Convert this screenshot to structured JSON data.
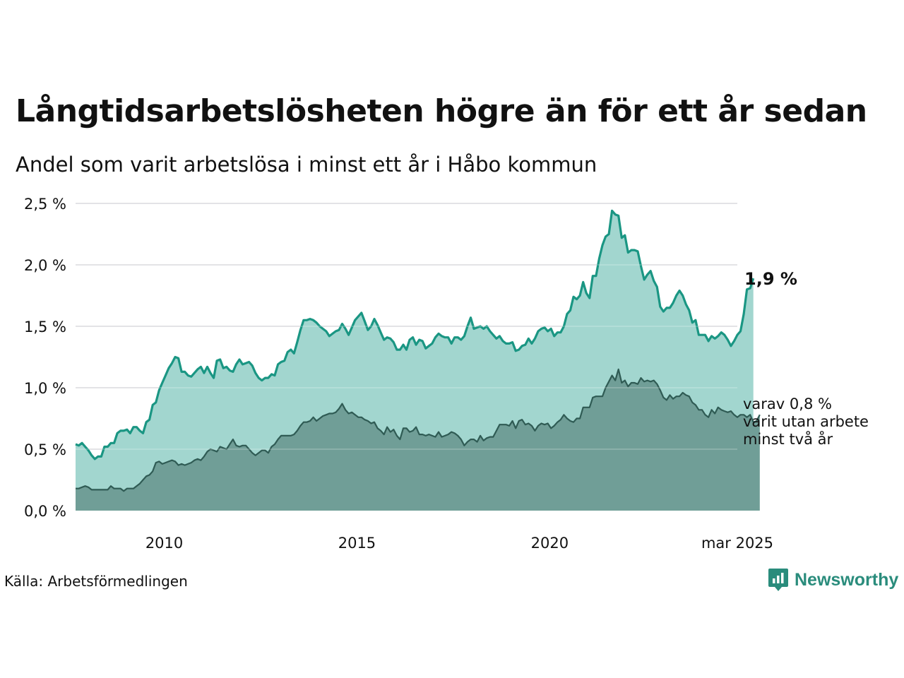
{
  "title": "Långtidsarbetslösheten högre än för ett år sedan",
  "subtitle": "Andel som varit arbetslösa i minst ett år i Håbo kommun",
  "source": "Källa: Arbetsförmedlingen",
  "brand": {
    "name": "Newsworthy",
    "icon": "newsworthy-logo-icon",
    "color": "#2a8c7c"
  },
  "colors": {
    "upper_line": "#1a9683",
    "upper_fill": "#a2d6cf",
    "lower_line": "#2f5b54",
    "lower_fill": "#709e97",
    "grid": "#dddde0"
  },
  "chart_data": {
    "type": "area",
    "ylim": [
      0,
      2.5
    ],
    "yticks": [
      "0,0 %",
      "0,5 %",
      "1,0 %",
      "1,5 %",
      "2,0 %",
      "2,5 %"
    ],
    "xticks": [
      "2010",
      "2015",
      "2020",
      "mar 2025"
    ],
    "xrange": [
      "2008-01",
      "2025-03"
    ],
    "grid": true,
    "series": [
      {
        "values_from": "2008-01",
        "frequency": "monthly",
        "end_label": "1,9 %",
        "values": [
          0.54,
          0.53,
          0.55,
          0.52,
          0.49,
          0.45,
          0.42,
          0.44,
          0.44,
          0.52,
          0.52,
          0.55,
          0.55,
          0.63,
          0.65,
          0.65,
          0.66,
          0.63,
          0.68,
          0.68,
          0.65,
          0.63,
          0.72,
          0.74,
          0.86,
          0.88,
          0.98,
          1.04,
          1.1,
          1.16,
          1.2,
          1.25,
          1.24,
          1.13,
          1.13,
          1.1,
          1.09,
          1.12,
          1.15,
          1.17,
          1.12,
          1.17,
          1.12,
          1.08,
          1.22,
          1.23,
          1.16,
          1.17,
          1.14,
          1.13,
          1.19,
          1.23,
          1.19,
          1.2,
          1.21,
          1.18,
          1.12,
          1.08,
          1.06,
          1.08,
          1.08,
          1.11,
          1.1,
          1.19,
          1.21,
          1.22,
          1.29,
          1.31,
          1.28,
          1.37,
          1.47,
          1.55,
          1.55,
          1.56,
          1.55,
          1.53,
          1.5,
          1.48,
          1.46,
          1.42,
          1.44,
          1.46,
          1.47,
          1.52,
          1.48,
          1.43,
          1.49,
          1.55,
          1.58,
          1.61,
          1.54,
          1.47,
          1.5,
          1.56,
          1.51,
          1.45,
          1.39,
          1.41,
          1.4,
          1.37,
          1.31,
          1.31,
          1.35,
          1.31,
          1.39,
          1.41,
          1.35,
          1.39,
          1.38,
          1.32,
          1.34,
          1.36,
          1.41,
          1.44,
          1.42,
          1.41,
          1.41,
          1.36,
          1.41,
          1.41,
          1.39,
          1.42,
          1.5,
          1.57,
          1.48,
          1.49,
          1.5,
          1.48,
          1.5,
          1.46,
          1.43,
          1.4,
          1.42,
          1.38,
          1.36,
          1.36,
          1.37,
          1.3,
          1.31,
          1.34,
          1.35,
          1.4,
          1.36,
          1.4,
          1.46,
          1.48,
          1.49,
          1.46,
          1.48,
          1.42,
          1.45,
          1.45,
          1.5,
          1.6,
          1.63,
          1.74,
          1.72,
          1.75,
          1.86,
          1.77,
          1.73,
          1.91,
          1.91,
          2.05,
          2.16,
          2.23,
          2.25,
          2.44,
          2.41,
          2.4,
          2.22,
          2.24,
          2.1,
          2.12,
          2.12,
          2.11,
          1.99,
          1.88,
          1.92,
          1.95,
          1.87,
          1.82,
          1.66,
          1.62,
          1.65,
          1.65,
          1.69,
          1.75,
          1.79,
          1.75,
          1.68,
          1.63,
          1.53,
          1.55,
          1.43,
          1.43,
          1.43,
          1.38,
          1.42,
          1.4,
          1.42,
          1.45,
          1.43,
          1.39,
          1.34,
          1.38,
          1.43,
          1.46,
          1.6,
          1.8,
          1.81,
          1.89
        ]
      },
      {
        "values_from": "2008-01",
        "frequency": "monthly",
        "end_label": "varav 0,8 %\nvarit utan arbete\nminst två år",
        "values": [
          0.18,
          0.18,
          0.19,
          0.2,
          0.19,
          0.17,
          0.17,
          0.17,
          0.17,
          0.17,
          0.17,
          0.2,
          0.18,
          0.18,
          0.18,
          0.16,
          0.18,
          0.18,
          0.18,
          0.2,
          0.22,
          0.25,
          0.28,
          0.29,
          0.32,
          0.39,
          0.4,
          0.38,
          0.39,
          0.4,
          0.41,
          0.4,
          0.37,
          0.38,
          0.37,
          0.38,
          0.39,
          0.41,
          0.42,
          0.41,
          0.44,
          0.48,
          0.5,
          0.49,
          0.48,
          0.52,
          0.51,
          0.5,
          0.54,
          0.58,
          0.53,
          0.52,
          0.53,
          0.53,
          0.5,
          0.47,
          0.45,
          0.47,
          0.49,
          0.49,
          0.47,
          0.52,
          0.54,
          0.58,
          0.61,
          0.61,
          0.61,
          0.61,
          0.62,
          0.65,
          0.69,
          0.72,
          0.72,
          0.73,
          0.76,
          0.73,
          0.75,
          0.77,
          0.78,
          0.79,
          0.79,
          0.8,
          0.83,
          0.87,
          0.82,
          0.79,
          0.8,
          0.78,
          0.76,
          0.76,
          0.74,
          0.73,
          0.71,
          0.72,
          0.67,
          0.65,
          0.62,
          0.68,
          0.64,
          0.66,
          0.61,
          0.58,
          0.67,
          0.67,
          0.64,
          0.65,
          0.68,
          0.62,
          0.62,
          0.61,
          0.62,
          0.61,
          0.6,
          0.64,
          0.6,
          0.61,
          0.62,
          0.64,
          0.63,
          0.61,
          0.58,
          0.53,
          0.56,
          0.58,
          0.58,
          0.56,
          0.61,
          0.57,
          0.59,
          0.6,
          0.6,
          0.65,
          0.7,
          0.7,
          0.7,
          0.69,
          0.73,
          0.67,
          0.73,
          0.74,
          0.7,
          0.71,
          0.69,
          0.65,
          0.69,
          0.71,
          0.7,
          0.71,
          0.67,
          0.69,
          0.72,
          0.74,
          0.78,
          0.75,
          0.73,
          0.72,
          0.75,
          0.75,
          0.84,
          0.84,
          0.84,
          0.92,
          0.93,
          0.93,
          0.93,
          1.0,
          1.05,
          1.1,
          1.06,
          1.15,
          1.04,
          1.06,
          1.01,
          1.04,
          1.04,
          1.03,
          1.08,
          1.05,
          1.06,
          1.05,
          1.06,
          1.03,
          0.98,
          0.92,
          0.9,
          0.94,
          0.91,
          0.93,
          0.93,
          0.96,
          0.94,
          0.93,
          0.88,
          0.86,
          0.82,
          0.82,
          0.78,
          0.76,
          0.82,
          0.79,
          0.84,
          0.82,
          0.81,
          0.8,
          0.81,
          0.78,
          0.76,
          0.78,
          0.78,
          0.76,
          0.78,
          0.72,
          0.73,
          0.78
        ]
      }
    ]
  }
}
